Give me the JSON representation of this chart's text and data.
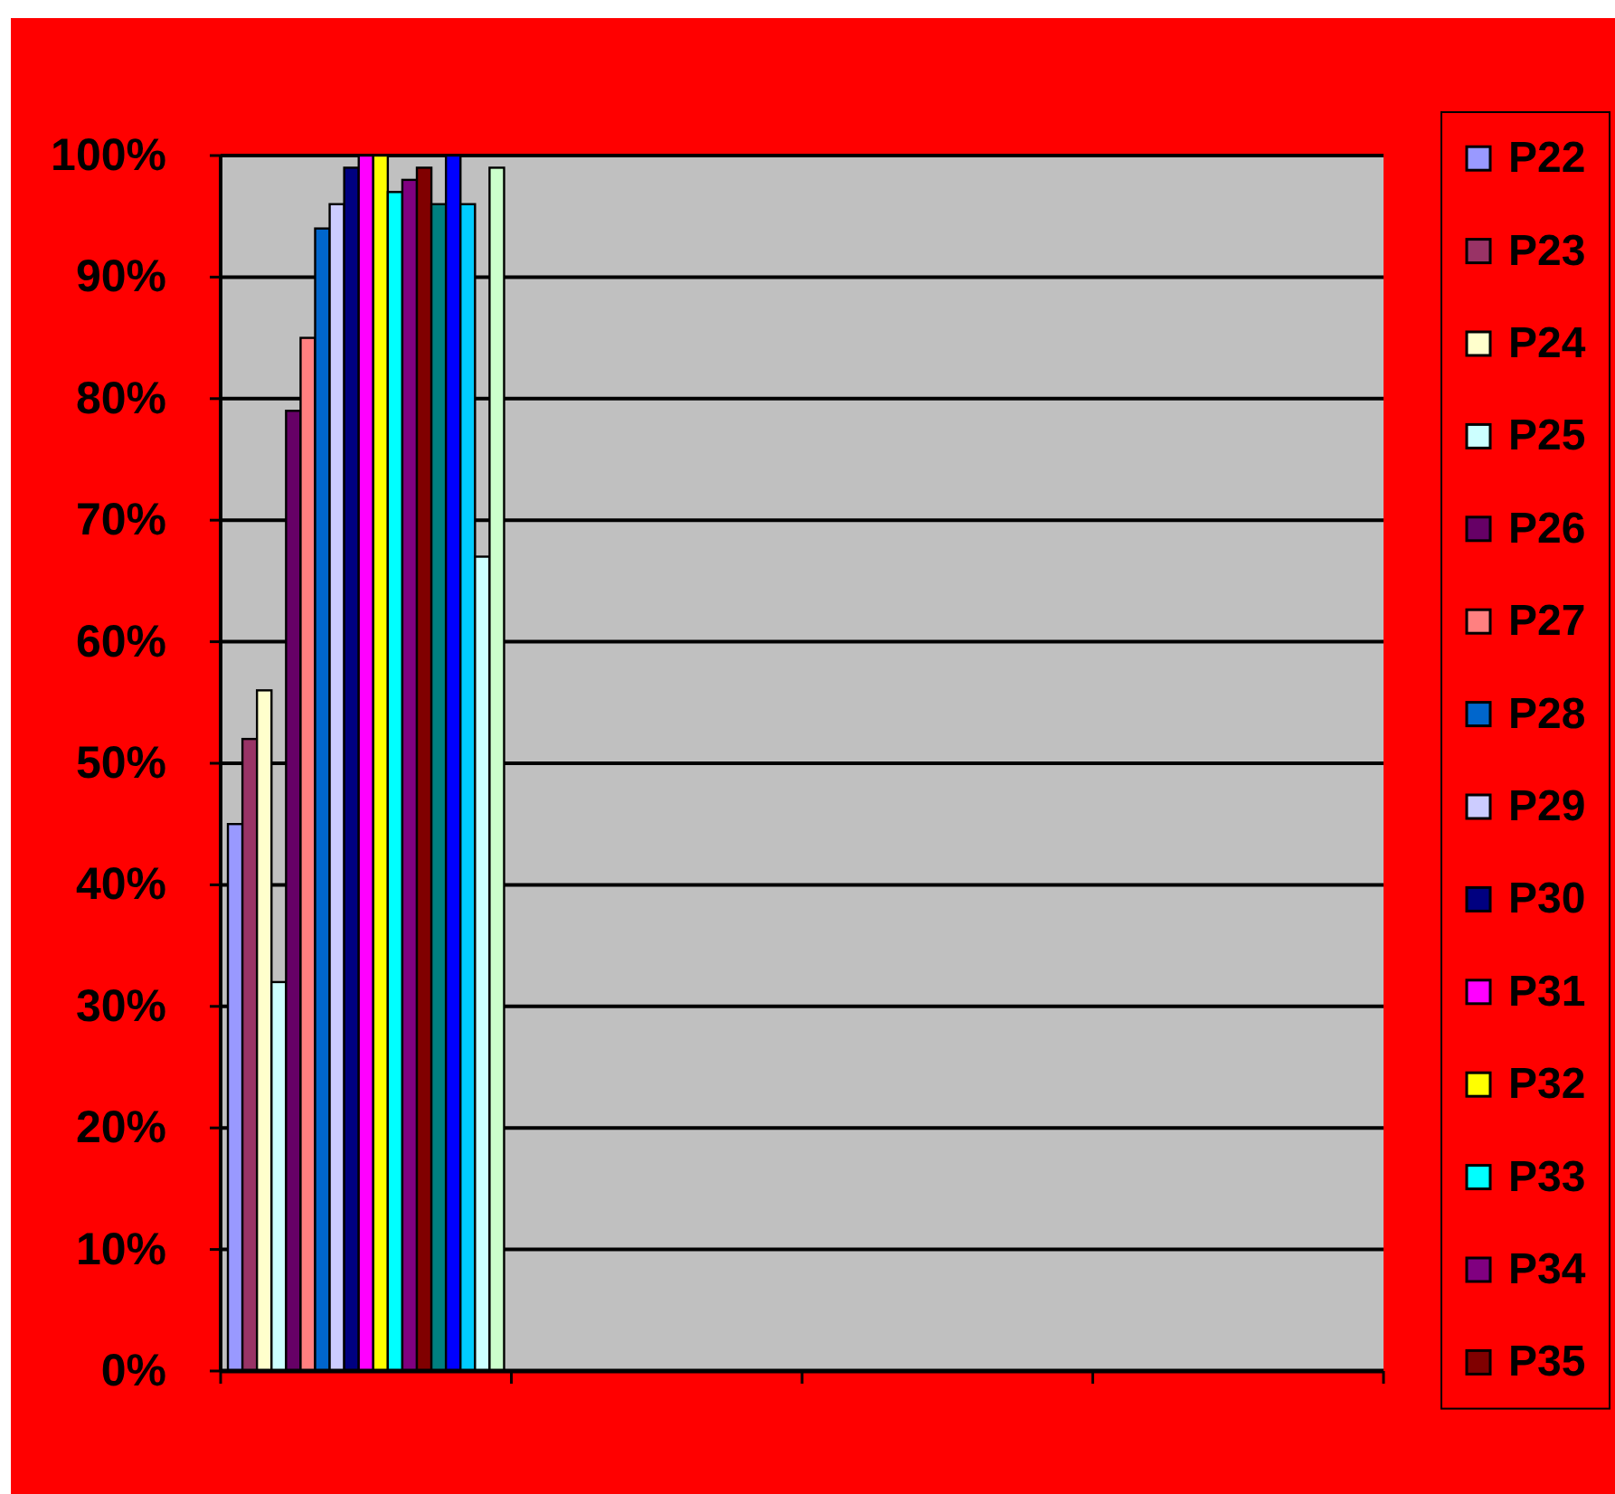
{
  "chart_data": {
    "type": "bar",
    "categories": [
      null,
      null,
      null,
      null
    ],
    "series": [
      {
        "name": "P22",
        "color": "#9999ff",
        "values": [
          45,
          null,
          null,
          null
        ]
      },
      {
        "name": "P23",
        "color": "#993366",
        "values": [
          52,
          null,
          null,
          null
        ]
      },
      {
        "name": "P24",
        "color": "#ffffcc",
        "values": [
          56,
          null,
          null,
          null
        ]
      },
      {
        "name": "P25",
        "color": "#ccffff",
        "values": [
          32,
          null,
          null,
          null
        ]
      },
      {
        "name": "P26",
        "color": "#660066",
        "values": [
          79,
          null,
          null,
          null
        ]
      },
      {
        "name": "P27",
        "color": "#ff8080",
        "values": [
          85,
          null,
          null,
          null
        ]
      },
      {
        "name": "P28",
        "color": "#0066cc",
        "values": [
          94,
          null,
          null,
          null
        ]
      },
      {
        "name": "P29",
        "color": "#ccccff",
        "values": [
          96,
          null,
          null,
          null
        ]
      },
      {
        "name": "P30",
        "color": "#000080",
        "values": [
          99,
          null,
          null,
          null
        ]
      },
      {
        "name": "P31",
        "color": "#ff00ff",
        "values": [
          100,
          null,
          null,
          null
        ]
      },
      {
        "name": "P32",
        "color": "#ffff00",
        "values": [
          100,
          null,
          null,
          null
        ]
      },
      {
        "name": "P33",
        "color": "#00ffff",
        "values": [
          97,
          null,
          null,
          null
        ]
      },
      {
        "name": "P34",
        "color": "#800080",
        "values": [
          98,
          null,
          null,
          null
        ]
      },
      {
        "name": "P35",
        "color": "#800000",
        "values": [
          99,
          null,
          null,
          null
        ]
      },
      {
        "color": "#008080",
        "values": [
          96,
          null,
          null,
          null
        ]
      },
      {
        "color": "#0000ff",
        "values": [
          100,
          null,
          null,
          null
        ]
      },
      {
        "color": "#00ccff",
        "values": [
          96,
          null,
          null,
          null
        ]
      },
      {
        "color": "#ccffff",
        "values": [
          67,
          null,
          null,
          null
        ]
      },
      {
        "color": "#ccffcc",
        "values": [
          99,
          null,
          null,
          null
        ]
      }
    ],
    "ylim": [
      0,
      100
    ],
    "yticks": [
      {
        "value": 0,
        "label": "0%"
      },
      {
        "value": 10,
        "label": "10%"
      },
      {
        "value": 20,
        "label": "20%"
      },
      {
        "value": 30,
        "label": "30%"
      },
      {
        "value": 40,
        "label": "40%"
      },
      {
        "value": 50,
        "label": "50%"
      },
      {
        "value": 60,
        "label": "60%"
      },
      {
        "value": 70,
        "label": "70%"
      },
      {
        "value": 80,
        "label": "80%"
      },
      {
        "value": 90,
        "label": "90%"
      },
      {
        "value": 100,
        "label": "100%"
      }
    ],
    "grid": "y",
    "legend": "right"
  }
}
